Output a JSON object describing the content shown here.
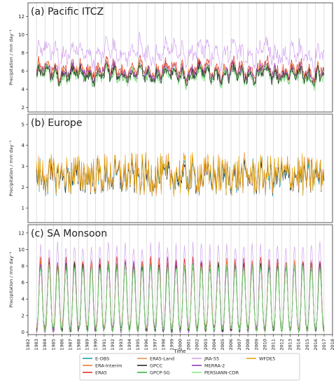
{
  "chart_data": {
    "type": "line",
    "xlabel": "Time",
    "x_range": [
      1982,
      2018
    ],
    "x_ticks": [
      "1982",
      "1983",
      "1984",
      "1985",
      "1986",
      "1987",
      "1988",
      "1989",
      "1990",
      "1991",
      "1992",
      "1993",
      "1994",
      "1995",
      "1996",
      "1997",
      "1998",
      "1999",
      "2000",
      "2001",
      "2002",
      "2003",
      "2004",
      "2005",
      "2006",
      "2007",
      "2008",
      "2009",
      "2010",
      "2011",
      "2012",
      "2013",
      "2014",
      "2015",
      "2016",
      "2017",
      "2018"
    ],
    "data_years": [
      1983,
      2017
    ],
    "vertical_gridlines_yearly": true,
    "legend": {
      "placement": "bottom-center",
      "ncol": 4,
      "entries": [
        {
          "name": "E-OBS",
          "color": "#1f9fb4"
        },
        {
          "name": "ERA-Interim",
          "color": "#f07c32"
        },
        {
          "name": "ERA5",
          "color": "#e0302a"
        },
        {
          "name": "ERA5-Land",
          "color": "#f0914a"
        },
        {
          "name": "GPCC",
          "color": "#2a2a2a"
        },
        {
          "name": "GPCP-SG",
          "color": "#3cb43c"
        },
        {
          "name": "JRA-55",
          "color": "#d2a2f0"
        },
        {
          "name": "MERRA-2",
          "color": "#8c3cb4"
        },
        {
          "name": "PERSIANN-CDR",
          "color": "#8ae68a"
        },
        {
          "name": "WFDE5",
          "color": "#e6a80a"
        }
      ]
    },
    "panels": [
      {
        "title": "(a) Pacific ITCZ",
        "ylabel": "Precipitation / mm day⁻¹",
        "ylim": [
          1.5,
          13.5
        ],
        "yticks": [
          2,
          4,
          6,
          8,
          10,
          12
        ],
        "pattern": "irregular",
        "series": [
          {
            "name": "JRA-55",
            "base": 8.0,
            "amp": 1.4,
            "noise": 1.0
          },
          {
            "name": "ERA5",
            "base": 6.2,
            "amp": 1.1,
            "noise": 0.8
          },
          {
            "name": "ERA-Interim",
            "base": 6.0,
            "amp": 1.0,
            "noise": 0.7
          },
          {
            "name": "MERRA-2",
            "base": 5.9,
            "amp": 1.0,
            "noise": 0.7
          },
          {
            "name": "GPCP-SG",
            "base": 5.5,
            "amp": 1.0,
            "noise": 0.7
          },
          {
            "name": "PERSIANN-CDR",
            "base": 5.4,
            "amp": 1.0,
            "noise": 0.7
          },
          {
            "name": "GPCC",
            "base": 5.6,
            "amp": 1.0,
            "noise": 0.7
          }
        ]
      },
      {
        "title": "(b) Europe",
        "ylabel": "Precipitation / mm day⁻¹",
        "ylim": [
          0.3,
          5.5
        ],
        "yticks": [
          1,
          2,
          3,
          4,
          5
        ],
        "pattern": "noisy",
        "series": [
          {
            "name": "E-OBS",
            "base": 2.5,
            "amp": 0.4,
            "noise": 0.8
          },
          {
            "name": "GPCC",
            "base": 2.5,
            "amp": 0.4,
            "noise": 0.8
          },
          {
            "name": "ERA5-Land",
            "base": 2.6,
            "amp": 0.4,
            "noise": 0.9
          },
          {
            "name": "WFDE5",
            "base": 2.6,
            "amp": 0.4,
            "noise": 0.9
          }
        ]
      },
      {
        "title": "(c) SA Monsoon",
        "ylabel": "Precipitation / mm day⁻¹",
        "ylim": [
          -0.3,
          13
        ],
        "yticks": [
          0,
          2,
          4,
          6,
          8,
          10,
          12
        ],
        "pattern": "seasonal",
        "series": [
          {
            "name": "JRA-55",
            "base": 0.5,
            "amp": 10.0,
            "noise": 1.0
          },
          {
            "name": "ERA5",
            "base": 0.4,
            "amp": 8.4,
            "noise": 0.8
          },
          {
            "name": "ERA-Interim",
            "base": 0.4,
            "amp": 8.0,
            "noise": 0.8
          },
          {
            "name": "MERRA-2",
            "base": 0.3,
            "amp": 8.0,
            "noise": 0.8
          },
          {
            "name": "GPCC",
            "base": 0.3,
            "amp": 7.8,
            "noise": 0.8
          },
          {
            "name": "GPCP-SG",
            "base": 0.3,
            "amp": 7.8,
            "noise": 0.8
          },
          {
            "name": "PERSIANN-CDR",
            "base": 0.3,
            "amp": 7.6,
            "noise": 0.8
          }
        ]
      }
    ]
  }
}
